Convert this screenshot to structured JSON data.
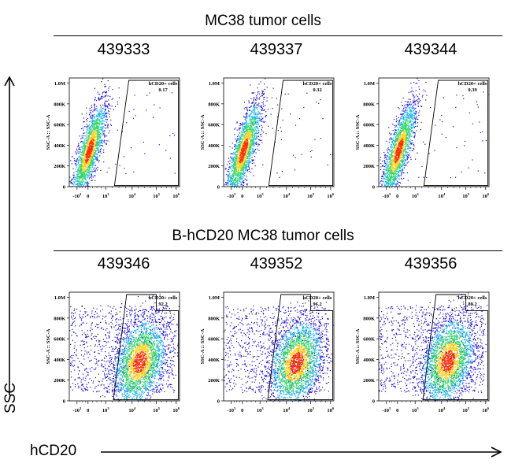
{
  "groups": [
    {
      "title": "MC38 tumor cells",
      "samples": [
        {
          "id": "439333",
          "gate_label": "hCD20+ cells",
          "gate_value": "0.17"
        },
        {
          "id": "439337",
          "gate_label": "hCD20+ cells",
          "gate_value": "0.32"
        },
        {
          "id": "439344",
          "gate_label": "hCD20+ cells",
          "gate_value": "0.39"
        }
      ]
    },
    {
      "title": "B-hCD20 MC38 tumor cells",
      "samples": [
        {
          "id": "439346",
          "gate_label": "hCD20+ cells",
          "gate_value": "92.2"
        },
        {
          "id": "439352",
          "gate_label": "hCD20+ cells",
          "gate_value": "96.2"
        },
        {
          "id": "439356",
          "gate_label": "hCD20+ cells",
          "gate_value": "89.2"
        }
      ]
    }
  ],
  "axes": {
    "y_title": "SSC",
    "x_title": "hCD20",
    "panel_y_label": "SSC-A :: SSC-A",
    "y_ticks": [
      "1.0M",
      "800K",
      "600K",
      "400K",
      "200K",
      "0"
    ],
    "x_ticks": [
      "-10",
      "0",
      "10",
      "10",
      "10",
      "10"
    ],
    "x_tick_exponents": [
      "3",
      "",
      "3",
      "4",
      "5",
      "6"
    ]
  },
  "chart_data": {
    "type": "scatter",
    "title": "",
    "xlabel": "hCD20",
    "ylabel": "SSC",
    "x_scale": "biexponential",
    "ylim": [
      0,
      1050000
    ],
    "panels": [
      {
        "group": "MC38 tumor cells",
        "sample": "439333",
        "gate": "hCD20+ cells",
        "percent_positive": 0.17,
        "population_center": {
          "hCD20": 50,
          "SSC": 350000
        }
      },
      {
        "group": "MC38 tumor cells",
        "sample": "439337",
        "gate": "hCD20+ cells",
        "percent_positive": 0.32,
        "population_center": {
          "hCD20": 50,
          "SSC": 350000
        }
      },
      {
        "group": "MC38 tumor cells",
        "sample": "439344",
        "gate": "hCD20+ cells",
        "percent_positive": 0.39,
        "population_center": {
          "hCD20": 50,
          "SSC": 350000
        }
      },
      {
        "group": "B-hCD20 MC38 tumor cells",
        "sample": "439346",
        "gate": "hCD20+ cells",
        "percent_positive": 92.2,
        "population_center": {
          "hCD20": 20000,
          "SSC": 380000
        }
      },
      {
        "group": "B-hCD20 MC38 tumor cells",
        "sample": "439352",
        "gate": "hCD20+ cells",
        "percent_positive": 96.2,
        "population_center": {
          "hCD20": 25000,
          "SSC": 370000
        }
      },
      {
        "group": "B-hCD20 MC38 tumor cells",
        "sample": "439356",
        "gate": "hCD20+ cells",
        "percent_positive": 89.2,
        "population_center": {
          "hCD20": 18000,
          "SSC": 390000
        }
      }
    ]
  },
  "colors": {
    "density_low": "#1a0ad6",
    "density_mid_low": "#12b4f0",
    "density_mid": "#2fd66a",
    "density_high": "#ffd21a",
    "density_peak": "#ff2a00"
  }
}
